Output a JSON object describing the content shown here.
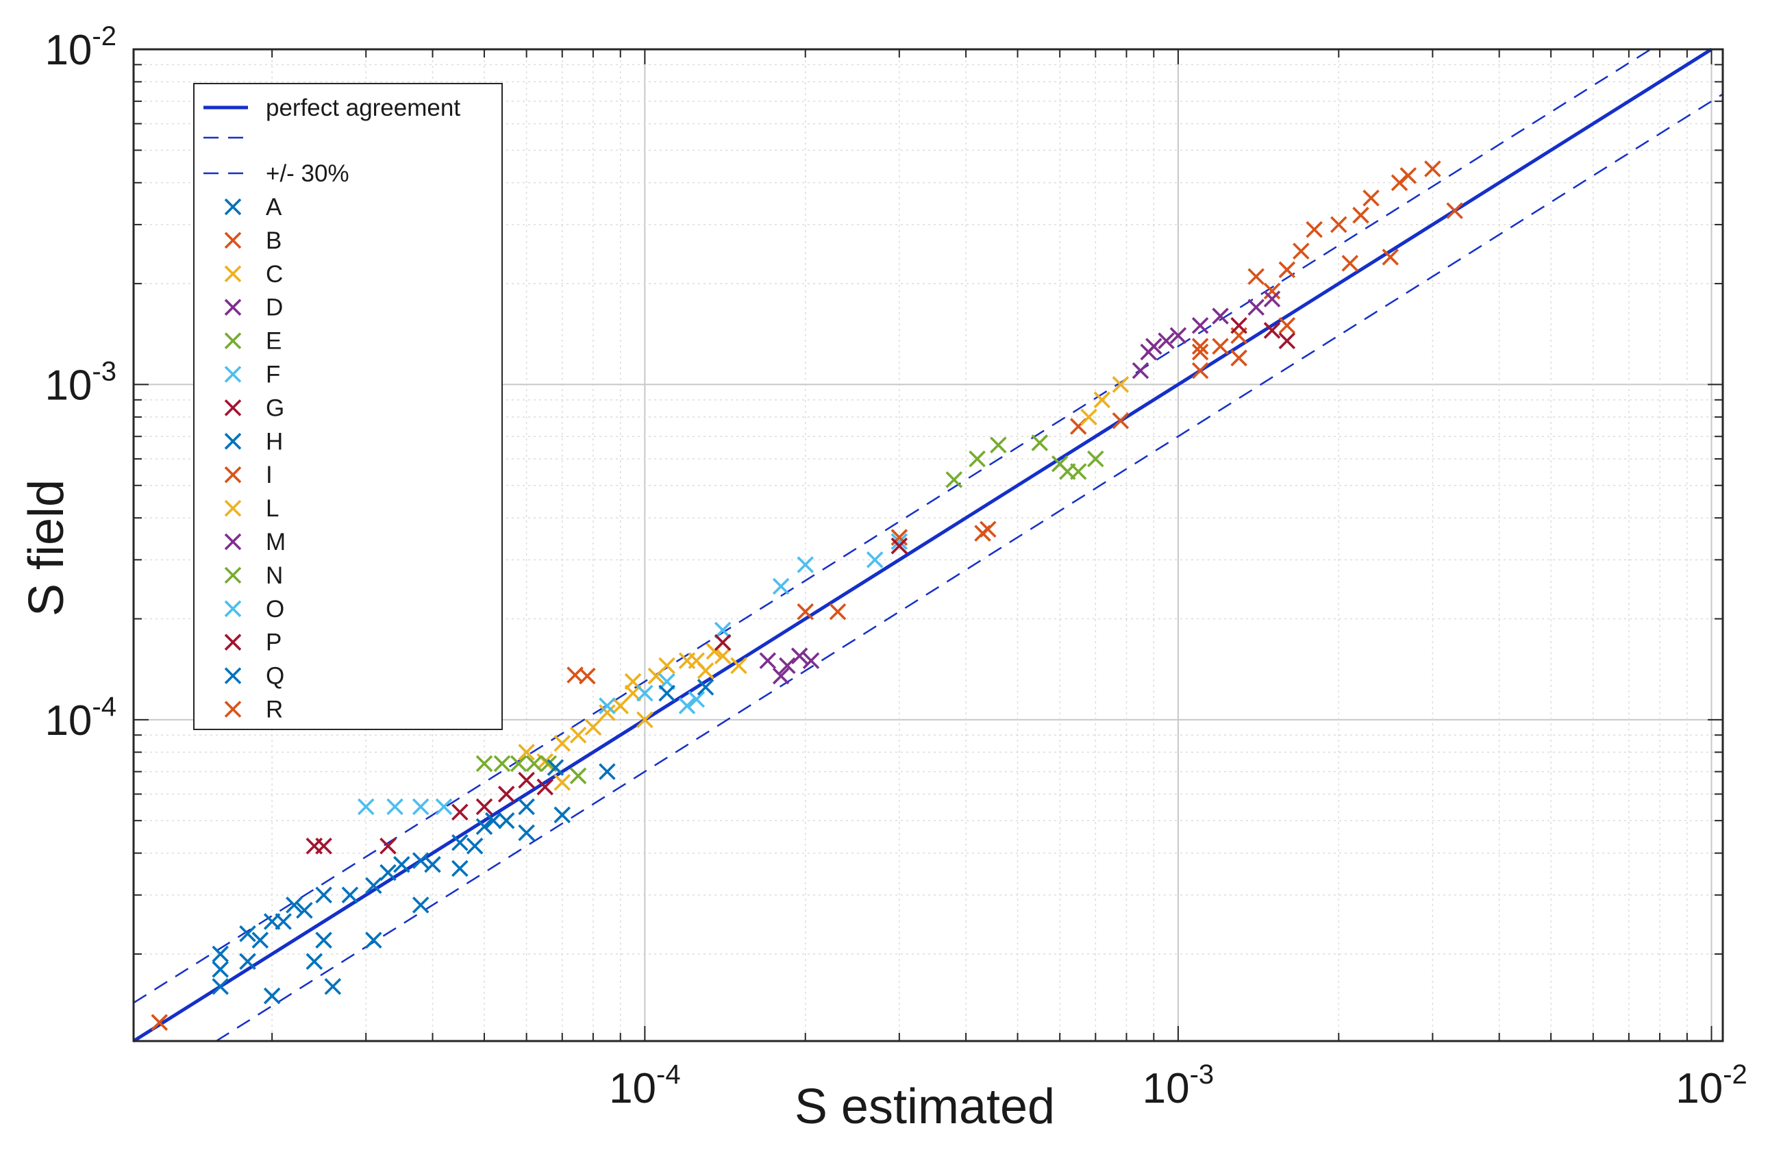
{
  "chart_data": {
    "type": "scatter",
    "xscale": "log",
    "yscale": "log",
    "xlim": [
      1.1e-05,
      0.0105
    ],
    "ylim": [
      1.1e-05,
      0.01
    ],
    "xlabel": "S estimated",
    "ylabel": "S field",
    "grid": true,
    "legend_position": "top-left",
    "x_ticks": [
      {
        "base": "10",
        "exp": "-4",
        "value": 0.0001
      },
      {
        "base": "10",
        "exp": "-3",
        "value": 0.001
      },
      {
        "base": "10",
        "exp": "-2",
        "value": 0.01
      }
    ],
    "y_ticks": [
      {
        "base": "10",
        "exp": "-4",
        "value": 0.0001
      },
      {
        "base": "10",
        "exp": "-3",
        "value": 0.001
      },
      {
        "base": "10",
        "exp": "-2",
        "value": 0.01
      }
    ],
    "lines": [
      {
        "name": "perfect agreement",
        "factor": 1.0,
        "style": "solid",
        "color": "#1530c8"
      },
      {
        "name": "",
        "factor": 1.3,
        "style": "dashed",
        "color": "#1530c8"
      },
      {
        "name": "+/- 30%",
        "factor": 0.7,
        "style": "dashed",
        "color": "#1530c8"
      }
    ],
    "series": [
      {
        "name": "A",
        "color": "#0072BD",
        "points": [
          [
            1.6e-05,
            1.8e-05
          ],
          [
            1.8e-05,
            1.9e-05
          ],
          [
            1.9e-05,
            2.2e-05
          ],
          [
            2.1e-05,
            2.5e-05
          ],
          [
            2.3e-05,
            2.7e-05
          ],
          [
            2.5e-05,
            2.2e-05
          ],
          [
            2.8e-05,
            3e-05
          ],
          [
            3.3e-05,
            3.5e-05
          ],
          [
            3.8e-05,
            3.8e-05
          ],
          [
            4.5e-05,
            4.3e-05
          ],
          [
            5e-05,
            4.8e-05
          ],
          [
            5.5e-05,
            5e-05
          ]
        ]
      },
      {
        "name": "B",
        "color": "#D95319",
        "points": [
          [
            0.0011,
            0.00125
          ],
          [
            0.0013,
            0.0014
          ],
          [
            0.0015,
            0.0019
          ],
          [
            0.0017,
            0.0025
          ],
          [
            0.002,
            0.003
          ],
          [
            0.0023,
            0.0036
          ],
          [
            0.0026,
            0.004
          ],
          [
            0.003,
            0.0044
          ],
          [
            0.0021,
            0.0023
          ],
          [
            0.0025,
            0.0024
          ],
          [
            0.0033,
            0.0033
          ]
        ]
      },
      {
        "name": "C",
        "color": "#EDB120",
        "points": [
          [
            8.5e-05,
            0.000105
          ],
          [
            9.5e-05,
            0.00012
          ],
          [
            0.000105,
            0.000135
          ],
          [
            0.00012,
            0.00015
          ],
          [
            0.00013,
            0.00014
          ],
          [
            0.00014,
            0.000155
          ],
          [
            8e-05,
            9.5e-05
          ],
          [
            7e-05,
            8.5e-05
          ]
        ]
      },
      {
        "name": "D",
        "color": "#7E2F8E",
        "points": [
          [
            0.00088,
            0.00125
          ],
          [
            0.00095,
            0.00135
          ],
          [
            0.0012,
            0.0016
          ],
          [
            0.0014,
            0.0017
          ],
          [
            0.0015,
            0.0018
          ]
        ]
      },
      {
        "name": "E",
        "color": "#77AC30",
        "points": [
          [
            0.00038,
            0.00052
          ],
          [
            0.00042,
            0.0006
          ],
          [
            0.00046,
            0.00066
          ],
          [
            0.0006,
            0.00058
          ],
          [
            0.00065,
            0.00055
          ],
          [
            0.0007,
            0.0006
          ]
        ]
      },
      {
        "name": "F",
        "color": "#4DBEEE",
        "points": [
          [
            3e-05,
            5.5e-05
          ],
          [
            3.4e-05,
            5.5e-05
          ],
          [
            3.8e-05,
            5.5e-05
          ],
          [
            4.2e-05,
            5.5e-05
          ],
          [
            0.00012,
            0.00011
          ],
          [
            0.00018,
            0.00025
          ],
          [
            0.0002,
            0.00029
          ],
          [
            0.00027,
            0.0003
          ],
          [
            0.0003,
            0.00034
          ]
        ]
      },
      {
        "name": "G",
        "color": "#A2142F",
        "points": [
          [
            2.4e-05,
            4.2e-05
          ],
          [
            2.5e-05,
            4.2e-05
          ],
          [
            3.3e-05,
            4.2e-05
          ],
          [
            4.5e-05,
            5.3e-05
          ],
          [
            5.5e-05,
            6e-05
          ],
          [
            6e-05,
            6.6e-05
          ],
          [
            5e-05,
            5.5e-05
          ],
          [
            6.5e-05,
            6.3e-05
          ]
        ]
      },
      {
        "name": "H",
        "color": "#0072BD",
        "points": [
          [
            1.6e-05,
            1.6e-05
          ],
          [
            2e-05,
            1.5e-05
          ],
          [
            2.4e-05,
            1.9e-05
          ],
          [
            2.6e-05,
            1.6e-05
          ],
          [
            3.1e-05,
            2.2e-05
          ],
          [
            3.8e-05,
            2.8e-05
          ],
          [
            4.5e-05,
            3.6e-05
          ],
          [
            6e-05,
            4.6e-05
          ],
          [
            7e-05,
            5.2e-05
          ],
          [
            8.5e-05,
            7e-05
          ]
        ]
      },
      {
        "name": "I",
        "color": "#D95319",
        "points": [
          [
            0.0002,
            0.00021
          ],
          [
            0.00023,
            0.00021
          ],
          [
            0.0003,
            0.00035
          ],
          [
            0.00044,
            0.00037
          ],
          [
            0.00065,
            0.00075
          ],
          [
            0.00078,
            0.00078
          ],
          [
            0.0011,
            0.0013
          ],
          [
            0.0013,
            0.0012
          ],
          [
            0.0016,
            0.0015
          ]
        ]
      },
      {
        "name": "L",
        "color": "#EDB120",
        "points": [
          [
            7.5e-05,
            9e-05
          ],
          [
            9e-05,
            0.00011
          ],
          [
            0.0001,
            0.0001
          ],
          [
            0.00011,
            0.000145
          ],
          [
            0.000125,
            0.00015
          ],
          [
            0.000135,
            0.00016
          ],
          [
            0.00015,
            0.000145
          ],
          [
            9.5e-05,
            0.00013
          ],
          [
            6.5e-05,
            7.5e-05
          ],
          [
            6e-05,
            8e-05
          ],
          [
            7e-05,
            6.5e-05
          ],
          [
            0.00068,
            0.0008
          ],
          [
            0.00072,
            0.0009
          ],
          [
            0.00078,
            0.001
          ]
        ]
      },
      {
        "name": "M",
        "color": "#7E2F8E",
        "points": [
          [
            0.00017,
            0.00015
          ],
          [
            0.000185,
            0.000145
          ],
          [
            0.000195,
            0.000155
          ],
          [
            0.000205,
            0.00015
          ],
          [
            0.00018,
            0.000135
          ],
          [
            0.00085,
            0.0011
          ],
          [
            0.0009,
            0.0013
          ],
          [
            0.001,
            0.0014
          ],
          [
            0.0011,
            0.0015
          ]
        ]
      },
      {
        "name": "N",
        "color": "#77AC30",
        "points": [
          [
            5e-05,
            7.4e-05
          ],
          [
            5.4e-05,
            7.4e-05
          ],
          [
            5.8e-05,
            7.4e-05
          ],
          [
            6.2e-05,
            7.4e-05
          ],
          [
            6.6e-05,
            7.4e-05
          ],
          [
            7.5e-05,
            6.8e-05
          ],
          [
            0.00055,
            0.00067
          ],
          [
            0.00062,
            0.00055
          ]
        ]
      },
      {
        "name": "O",
        "color": "#4DBEEE",
        "points": [
          [
            0.0001,
            0.00012
          ],
          [
            0.00011,
            0.00013
          ],
          [
            0.000125,
            0.000115
          ],
          [
            0.00014,
            0.000185
          ],
          [
            8.5e-05,
            0.00011
          ]
        ]
      },
      {
        "name": "P",
        "color": "#A2142F",
        "points": [
          [
            0.0003,
            0.00033
          ],
          [
            0.00014,
            0.00017
          ],
          [
            0.0016,
            0.00135
          ],
          [
            0.0015,
            0.00145
          ],
          [
            0.0013,
            0.0015
          ]
        ]
      },
      {
        "name": "Q",
        "color": "#0072BD",
        "points": [
          [
            1.6e-05,
            2e-05
          ],
          [
            1.8e-05,
            2.3e-05
          ],
          [
            2e-05,
            2.5e-05
          ],
          [
            2.2e-05,
            2.8e-05
          ],
          [
            2.5e-05,
            3e-05
          ],
          [
            3.1e-05,
            3.2e-05
          ],
          [
            3.5e-05,
            3.7e-05
          ],
          [
            4e-05,
            3.7e-05
          ],
          [
            4.8e-05,
            4.2e-05
          ],
          [
            5.2e-05,
            5e-05
          ],
          [
            6e-05,
            5.5e-05
          ],
          [
            6.8e-05,
            7.2e-05
          ],
          [
            0.00011,
            0.00012
          ],
          [
            0.00013,
            0.000125
          ]
        ]
      },
      {
        "name": "R",
        "color": "#D95319",
        "points": [
          [
            1.23e-05,
            1.25e-05
          ],
          [
            7.4e-05,
            0.000136
          ],
          [
            7.8e-05,
            0.000135
          ],
          [
            0.00043,
            0.00036
          ],
          [
            0.0011,
            0.0011
          ],
          [
            0.0012,
            0.0013
          ],
          [
            0.0014,
            0.0021
          ],
          [
            0.0016,
            0.0022
          ],
          [
            0.0018,
            0.0029
          ],
          [
            0.0022,
            0.0032
          ],
          [
            0.0027,
            0.0042
          ]
        ]
      }
    ]
  }
}
